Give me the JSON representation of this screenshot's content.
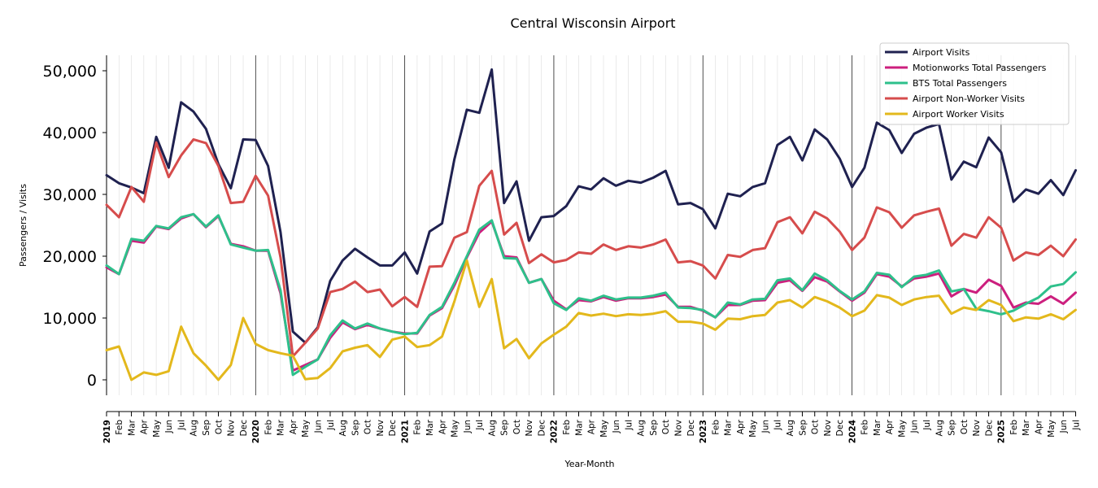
{
  "chart_data": {
    "type": "line",
    "title": "Central Wisconsin Airport",
    "xlabel": "Year-Month",
    "ylabel": "Passengers / Visits",
    "ylim": [
      -2500,
      52500
    ],
    "yticks": [
      0,
      10000,
      20000,
      30000,
      40000,
      50000
    ],
    "ytick_labels": [
      "0",
      "10,000",
      "20,000",
      "30,000",
      "40,000",
      "50,000"
    ],
    "grid": "vertical minor per month, major at January",
    "legend_position": "top-right",
    "x": [
      "2019",
      "Feb",
      "Mar",
      "Apr",
      "May",
      "Jun",
      "Jul",
      "Aug",
      "Sep",
      "Oct",
      "Nov",
      "Dec",
      "2020",
      "Feb",
      "Mar",
      "Apr",
      "May",
      "Jun",
      "Jul",
      "Aug",
      "Sep",
      "Oct",
      "Nov",
      "Dec",
      "2021",
      "Feb",
      "Mar",
      "Apr",
      "May",
      "Jun",
      "Jul",
      "Aug",
      "Sep",
      "Oct",
      "Nov",
      "Dec",
      "2022",
      "Feb",
      "Mar",
      "Apr",
      "May",
      "Jun",
      "Jul",
      "Aug",
      "Sep",
      "Oct",
      "Nov",
      "Dec",
      "2023",
      "Feb",
      "Mar",
      "Apr",
      "May",
      "Jun",
      "Jul",
      "Aug",
      "Sep",
      "Oct",
      "Nov",
      "Dec",
      "2024",
      "Feb",
      "Mar",
      "Apr",
      "May",
      "Jun",
      "Jul",
      "Aug",
      "Sep",
      "Oct",
      "Nov",
      "Dec",
      "2025",
      "Feb",
      "Mar",
      "Apr",
      "May",
      "Jun",
      "Jul"
    ],
    "series": [
      {
        "name": "Airport Visits",
        "color": "#1f2150",
        "values": [
          33100,
          31800,
          31100,
          30200,
          39300,
          34300,
          44900,
          43400,
          40600,
          34900,
          31000,
          38900,
          38800,
          34600,
          23900,
          7800,
          6000,
          8500,
          16000,
          19300,
          21200,
          19800,
          18500,
          18500,
          20600,
          17200,
          24000,
          25300,
          35700,
          43700,
          43200,
          50200,
          28600,
          32100,
          22500,
          26300,
          26500,
          28100,
          31300,
          30800,
          32600,
          31400,
          32200,
          31900,
          32700,
          33800,
          28400,
          28600,
          27600,
          24500,
          30100,
          29700,
          31200,
          31800,
          38000,
          39300,
          35500,
          40500,
          38900,
          35800,
          31200,
          34300,
          41600,
          40400,
          36700,
          39800,
          40800,
          41400,
          32400,
          35300,
          34400,
          39200,
          36800,
          28800,
          30800,
          30100,
          32300,
          29900,
          33900
        ]
      },
      {
        "name": "Motionworks Total Passengers",
        "color": "#cc1f7e",
        "values": [
          18200,
          17100,
          22500,
          22200,
          24800,
          24400,
          26100,
          26800,
          24700,
          26500,
          22000,
          21600,
          20900,
          20900,
          14000,
          1500,
          2400,
          3300,
          6800,
          9300,
          8200,
          8900,
          8300,
          7800,
          7500,
          7500,
          10400,
          11600,
          15300,
          19800,
          23800,
          25600,
          20000,
          19800,
          15700,
          16300,
          12800,
          11400,
          12900,
          12700,
          13400,
          12800,
          13200,
          13200,
          13400,
          13800,
          11800,
          11800,
          11200,
          10100,
          12100,
          12100,
          12800,
          12900,
          15700,
          16100,
          14400,
          16600,
          15900,
          14300,
          12800,
          14100,
          17100,
          16700,
          15100,
          16400,
          16700,
          17200,
          13500,
          14700,
          14100,
          16200,
          15200,
          11700,
          12500,
          12300,
          13500,
          12300,
          14100
        ]
      },
      {
        "name": "BTS Total Passengers",
        "color": "#2ec08b",
        "values": [
          18500,
          17100,
          22800,
          22500,
          24900,
          24500,
          26300,
          26800,
          24800,
          26600,
          21900,
          21400,
          20900,
          21000,
          14500,
          800,
          2100,
          3300,
          7200,
          9600,
          8300,
          9100,
          8300,
          7800,
          7400,
          7600,
          10500,
          11800,
          15700,
          20000,
          24300,
          25800,
          19700,
          19600,
          15700,
          16300,
          12400,
          11300,
          13200,
          12800,
          13600,
          13000,
          13300,
          13300,
          13600,
          14100,
          11700,
          11600,
          11300,
          10100,
          12500,
          12200,
          13000,
          13100,
          16100,
          16400,
          14500,
          17200,
          16100,
          14400,
          13000,
          14300,
          17300,
          17000,
          15000,
          16700,
          17000,
          17700,
          14300,
          14700,
          11500,
          11100,
          10600,
          11200,
          12300,
          13300,
          15100,
          15500,
          17400
        ]
      },
      {
        "name": "Airport Non-Worker Visits",
        "color": "#d64c4c",
        "values": [
          28300,
          26300,
          31200,
          28800,
          38400,
          32800,
          36300,
          38900,
          38300,
          34600,
          28600,
          28800,
          33000,
          29800,
          19800,
          3800,
          6000,
          8300,
          14200,
          14700,
          15900,
          14200,
          14600,
          11900,
          13400,
          11800,
          18300,
          18400,
          23000,
          23900,
          31400,
          33800,
          23500,
          25400,
          18900,
          20300,
          19000,
          19400,
          20600,
          20400,
          21900,
          21000,
          21600,
          21400,
          21900,
          22700,
          19000,
          19200,
          18500,
          16400,
          20200,
          19900,
          21000,
          21300,
          25500,
          26300,
          23700,
          27200,
          26100,
          24000,
          21000,
          23000,
          27900,
          27100,
          24600,
          26600,
          27200,
          27700,
          21700,
          23600,
          23000,
          26300,
          24600,
          19300,
          20600,
          20200,
          21700,
          20000,
          22700
        ]
      },
      {
        "name": "Airport Worker Visits",
        "color": "#e3b81c",
        "values": [
          4800,
          5400,
          0,
          1200,
          800,
          1400,
          8600,
          4300,
          2300,
          0,
          2400,
          10000,
          5800,
          4800,
          4300,
          3900,
          100,
          300,
          1900,
          4600,
          5200,
          5600,
          3700,
          6500,
          7000,
          5300,
          5600,
          7000,
          12700,
          19300,
          11800,
          16300,
          5100,
          6600,
          3500,
          5900,
          7300,
          8600,
          10800,
          10400,
          10700,
          10300,
          10600,
          10500,
          10700,
          11100,
          9400,
          9400,
          9100,
          8100,
          9900,
          9800,
          10300,
          10500,
          12500,
          12900,
          11700,
          13400,
          12700,
          11700,
          10300,
          11200,
          13700,
          13300,
          12100,
          13000,
          13400,
          13600,
          10700,
          11700,
          11300,
          12900,
          12100,
          9500,
          10100,
          9900,
          10600,
          9800,
          11300
        ]
      }
    ]
  }
}
